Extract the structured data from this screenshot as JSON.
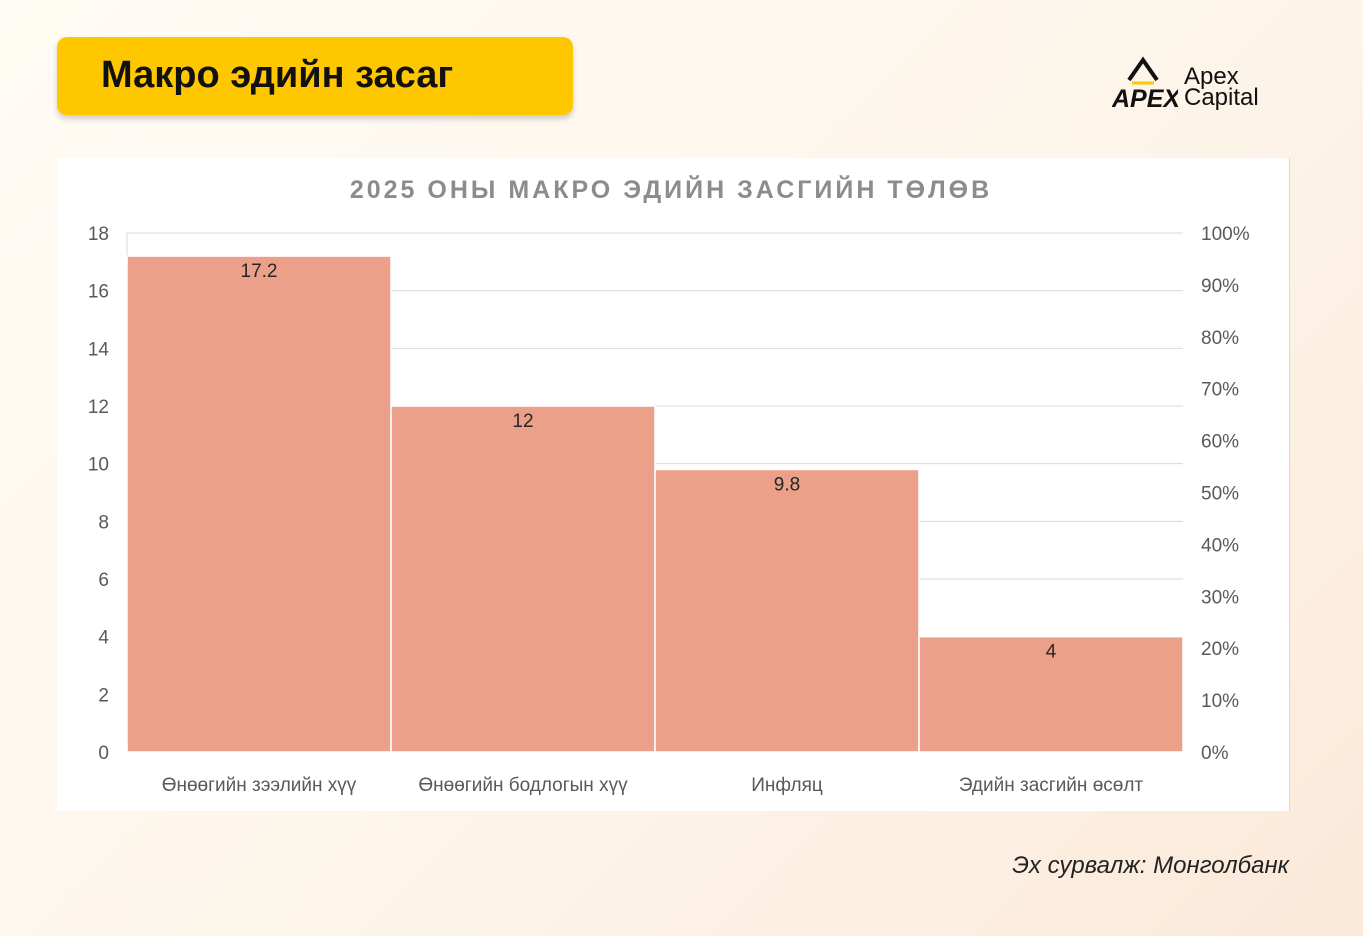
{
  "header": {
    "title": "Макро эдийн засаг"
  },
  "logo": {
    "mark_text": "APEX",
    "line1": "Apex",
    "line2": "Capital",
    "accent_color": "#ffc700"
  },
  "chart_data": {
    "type": "bar",
    "title": "2025 ОНЫ МАКРО ЭДИЙН ЗАСГИЙН ТӨЛӨВ",
    "categories": [
      "Өнөөгийн зээлийн хүү",
      "Өнөөгийн бодлогын хүү",
      "Инфляц",
      "Эдийн засгийн өсөлт"
    ],
    "values": [
      17.2,
      12,
      9.8,
      4
    ],
    "data_labels": [
      "17.2",
      "12",
      "9.8",
      "4"
    ],
    "ylim": [
      0,
      18
    ],
    "y_ticks": [
      "0",
      "2",
      "4",
      "6",
      "8",
      "10",
      "12",
      "14",
      "16",
      "18"
    ],
    "y2_ticks": [
      "0%",
      "10%",
      "20%",
      "30%",
      "40%",
      "50%",
      "60%",
      "70%",
      "80%",
      "90%",
      "100%"
    ],
    "grid": true,
    "bar_color": "#eca08a",
    "gap_width": 0
  },
  "footer": {
    "source": "Эх сурвалж:  Монголбанк"
  }
}
